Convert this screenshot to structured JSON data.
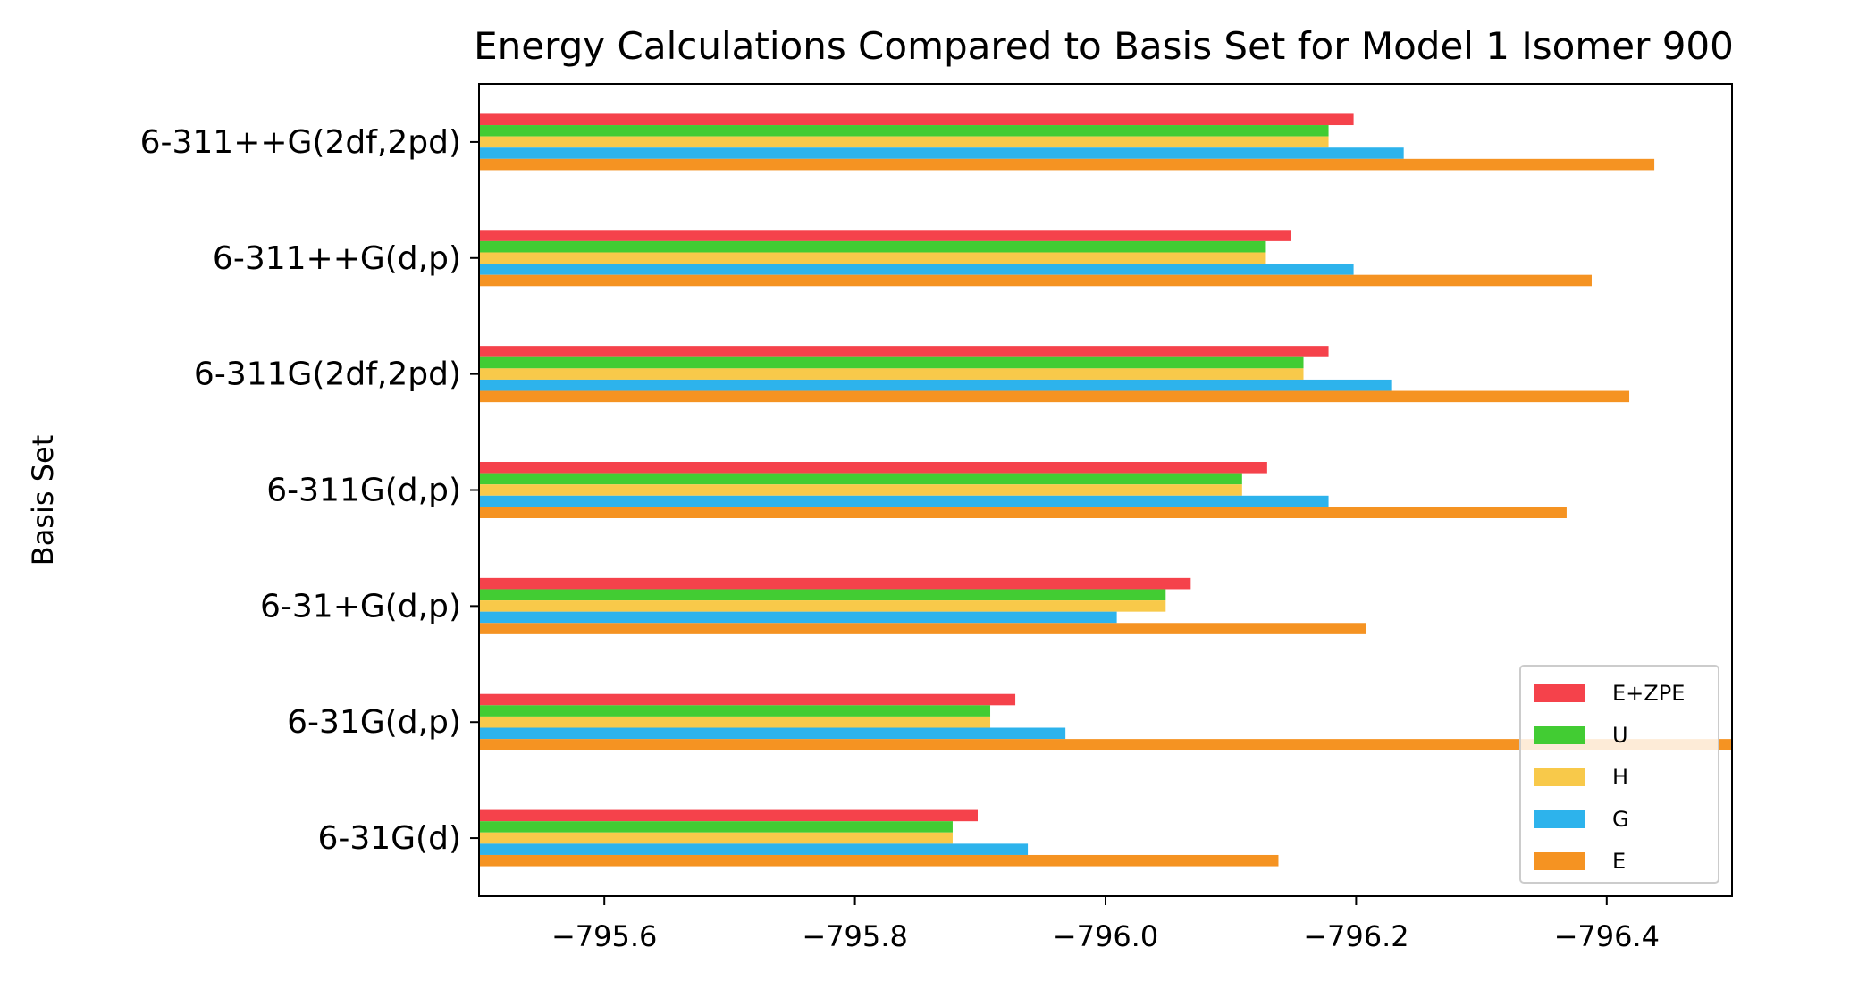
{
  "chart_data": {
    "type": "bar",
    "orientation": "horizontal",
    "title": "Energy Calculations Compared to Basis Set for Model 1 Isomer 900",
    "xlabel": "",
    "ylabel": "Basis Set",
    "xlim": [
      -795.5,
      -796.5
    ],
    "x_axis_inverted": true,
    "xticks": [
      -795.6,
      -795.8,
      -796.0,
      -796.2,
      -796.4
    ],
    "xtick_labels": [
      "−795.6",
      "−795.8",
      "−796.0",
      "−796.2",
      "−796.4"
    ],
    "grid": false,
    "legend_position": "lower-right",
    "categories": [
      "6-31G(d)",
      "6-31G(d,p)",
      "6-31+G(d,p)",
      "6-311G(d,p)",
      "6-311G(2df,2pd)",
      "6-311++G(d,p)",
      "6-311++G(2df,2pd)"
    ],
    "series": [
      {
        "name": "E+ZPE",
        "color": "#f5424b",
        "values": [
          -795.898,
          -795.928,
          -796.068,
          -796.129,
          -796.178,
          -796.148,
          -796.198
        ]
      },
      {
        "name": "U",
        "color": "#42cc33",
        "values": [
          -795.878,
          -795.908,
          -796.048,
          -796.109,
          -796.158,
          -796.128,
          -796.178
        ]
      },
      {
        "name": "H",
        "color": "#f8c94a",
        "values": [
          -795.878,
          -795.908,
          -796.048,
          -796.109,
          -796.158,
          -796.128,
          -796.178
        ]
      },
      {
        "name": "G",
        "color": "#2db3ec",
        "values": [
          -795.938,
          -795.968,
          -796.009,
          -796.178,
          -796.228,
          -796.198,
          -796.238
        ]
      },
      {
        "name": "E",
        "color": "#f59322",
        "values": [
          -796.138,
          -796.5,
          -796.208,
          -796.368,
          -796.418,
          -796.388,
          -796.438
        ]
      }
    ]
  }
}
